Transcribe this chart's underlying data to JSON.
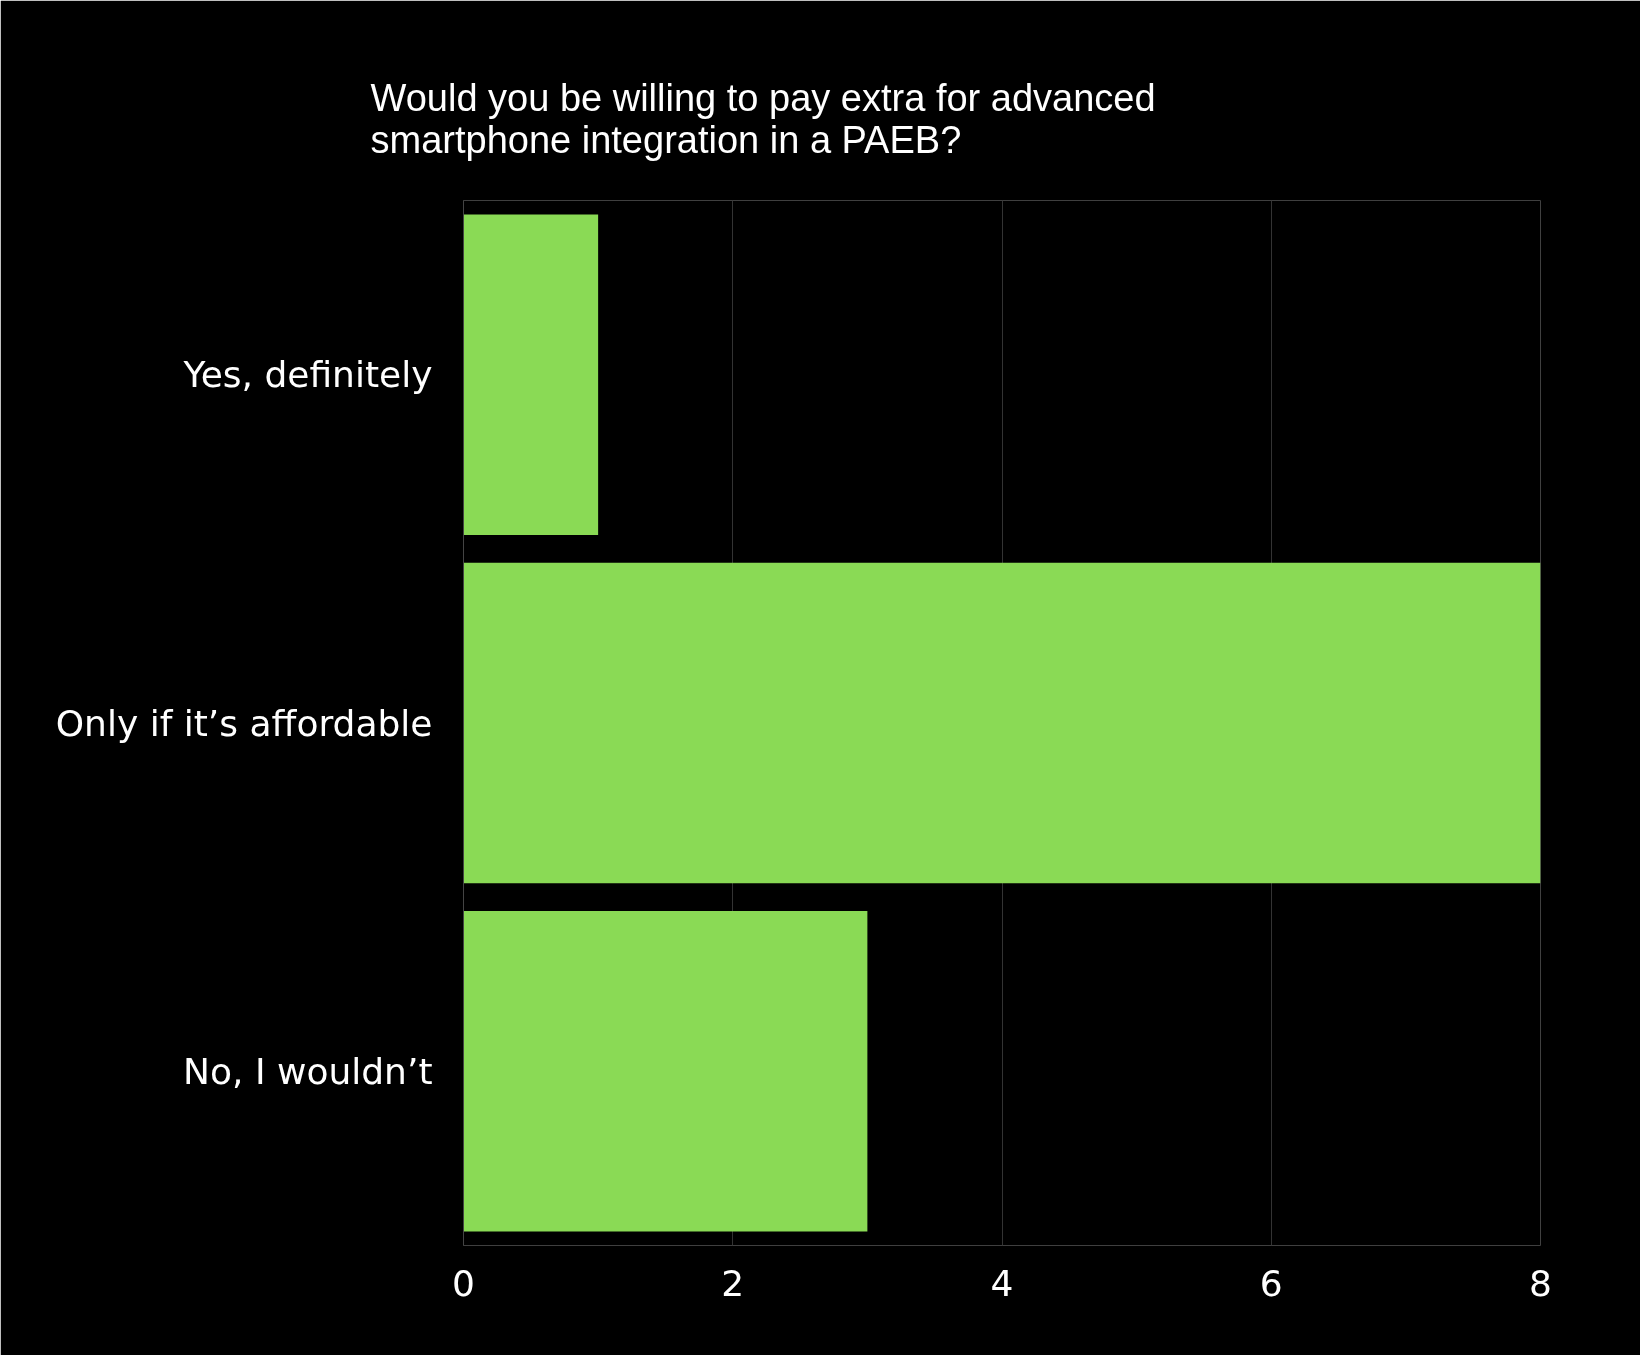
{
  "chart_data": {
    "type": "bar",
    "orientation": "horizontal",
    "title": "Would you be willing to pay extra for advanced\nsmartphone integration in a PAEB?",
    "categories": [
      "Yes, definitely",
      "Only if it’s affordable",
      "No, I wouldn’t"
    ],
    "values": [
      1,
      8,
      3
    ],
    "color": "#8ada55",
    "xlim": [
      0,
      8
    ],
    "xticks": [
      0,
      2,
      4,
      6,
      8
    ],
    "grid": "x"
  }
}
